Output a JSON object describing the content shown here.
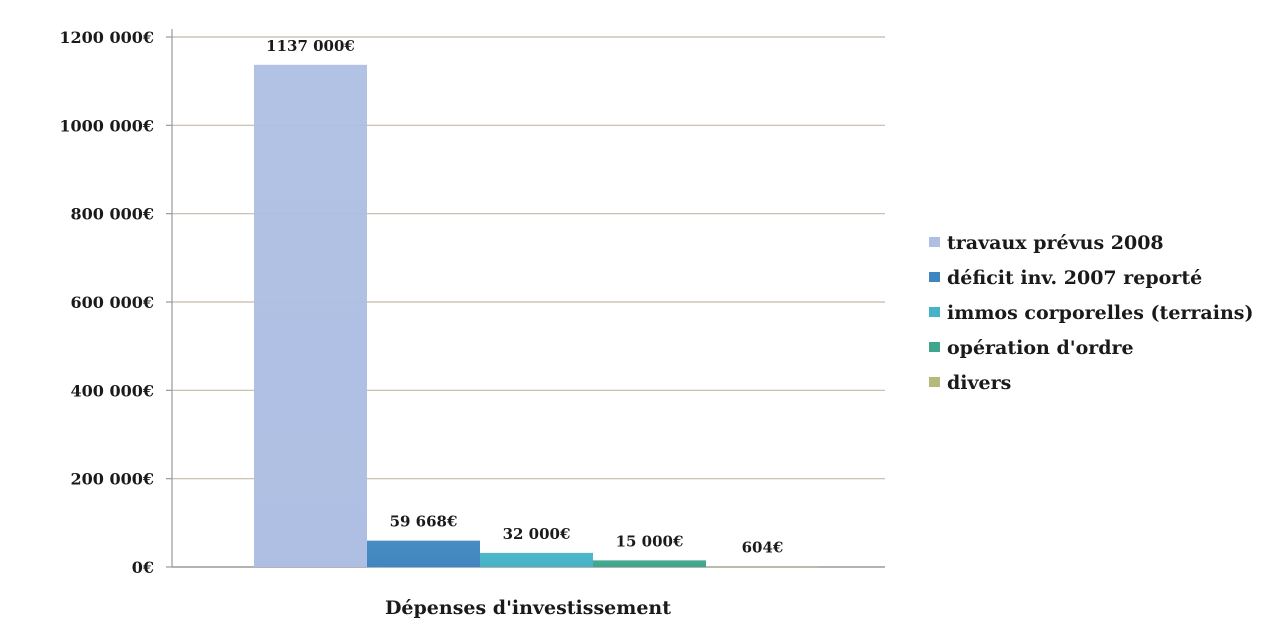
{
  "chart_data": {
    "type": "bar",
    "title": "",
    "xlabel": "Dépenses d'investissement",
    "ylabel": "",
    "ylim": [
      0,
      1200000
    ],
    "yticks": [
      {
        "value": 0,
        "label": "0€"
      },
      {
        "value": 200000,
        "label": "200 000€"
      },
      {
        "value": 400000,
        "label": "400 000€"
      },
      {
        "value": 600000,
        "label": "600 000€"
      },
      {
        "value": 800000,
        "label": "800 000€"
      },
      {
        "value": 1000000,
        "label": "1000 000€"
      },
      {
        "value": 1200000,
        "label": "1200 000€"
      }
    ],
    "grid": true,
    "legend_position": "right",
    "categories": [
      "Dépenses d'investissement"
    ],
    "series": [
      {
        "name": "travaux prévus 2008",
        "values": [
          1137000
        ],
        "label": "1137 000€",
        "color": "#aebfe3"
      },
      {
        "name": "déficit inv. 2007 reporté",
        "values": [
          59668
        ],
        "label": "59 668€",
        "color": "#3f86c0"
      },
      {
        "name": "immos corporelles (terrains)",
        "values": [
          32000
        ],
        "label": "32 000€",
        "color": "#45b4c6"
      },
      {
        "name": "opération d'ordre",
        "values": [
          15000
        ],
        "label": "15 000€",
        "color": "#3fa58c"
      },
      {
        "name": "divers",
        "values": [
          604
        ],
        "label": "604€",
        "color": "#b6b979"
      }
    ]
  }
}
